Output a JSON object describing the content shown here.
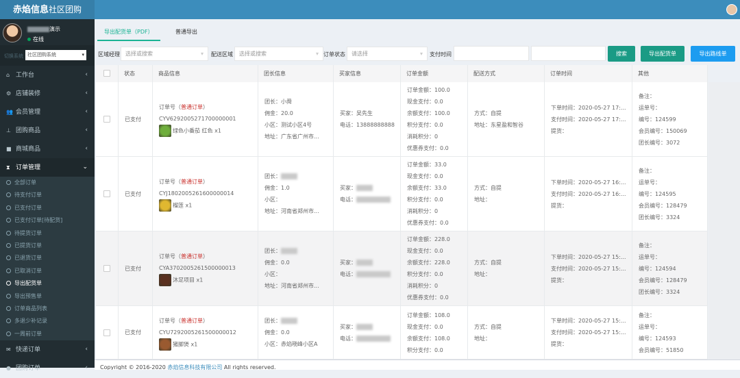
{
  "header": {
    "brand": "赤焰信息",
    "brand_sub": "社区团购"
  },
  "user": {
    "name_suffix": "演示",
    "status": "在线"
  },
  "switch": {
    "label": "切换系统",
    "value": "社区团购系统"
  },
  "menu": [
    {
      "label": "工作台",
      "icon": "home-icon",
      "glyph": "⌂"
    },
    {
      "label": "店铺装修",
      "icon": "cogs-icon",
      "glyph": "⚙"
    },
    {
      "label": "会员管理",
      "icon": "users-icon",
      "glyph": "👥"
    },
    {
      "label": "团购商品",
      "icon": "sitemap-icon",
      "glyph": "⊥"
    },
    {
      "label": "商城商品",
      "icon": "briefcase-icon",
      "glyph": "■"
    },
    {
      "label": "订单管理",
      "icon": "hourglass-icon",
      "glyph": "⧗",
      "active": true
    }
  ],
  "submenu": [
    "全部订单",
    "待支付订单",
    "已支付订单",
    "已支付订单[待配货]",
    "待提货订单",
    "已提货订单",
    "已退货订单",
    "已取消订单",
    "导出配货单",
    "导出预售单",
    "订单商品列表",
    "多退少补记录",
    "一周前订单"
  ],
  "submenu_active": "导出配货单",
  "menu_after": [
    {
      "label": "快递订单",
      "icon": "envelope-icon",
      "glyph": "✉"
    },
    {
      "label": "团购订单",
      "icon": "globe-icon",
      "glyph": "●"
    }
  ],
  "tabs": {
    "active": "导出配货单（PDF）",
    "other": "普通导出"
  },
  "filters": {
    "area_manager_label": "区域经理",
    "area_manager_placeholder": "选择或搜索",
    "delivery_area_label": "配送区域",
    "delivery_area_placeholder": "选择或搜索",
    "order_status_label": "订单状态",
    "order_status_placeholder": "请选择",
    "pay_time_label": "支付时间",
    "search": "搜索",
    "export_delivery": "导出配货单",
    "export_route": "导出路线单"
  },
  "colors": {
    "accent": "#1ab394",
    "blue": "#1c9cf0",
    "header": "#3c8dbc",
    "sidebar": "#222d32",
    "order_type": "#c9302c"
  },
  "table": {
    "headers": [
      "状态",
      "商品信息",
      "团长信息",
      "买家信息",
      "订单金额",
      "配送方式",
      "订单时间",
      "其他"
    ],
    "rows": [
      {
        "status": "已支付",
        "order_label": "订单号（",
        "order_type": "普通订单",
        "order_label_end": "）",
        "order_no": "CYV6292005271700000001",
        "product": "绿色小番茄 红色 x1",
        "thumb": "#6fae3c",
        "leader": [
          "团长：小舜",
          "佣金：20.0",
          "小区：测试小区4号",
          "地址：广东省广州市..."
        ],
        "buyer": [
          "买家：吴先生",
          "电话：13888888888"
        ],
        "amount": [
          "订单金额：100.0",
          "现金支付：0.0",
          "余额支付：100.0",
          "积分支付：0.0",
          "消耗积分：0",
          "优惠券支付：0.0"
        ],
        "delivery": [
          "方式：自提",
          "地址：东星盈和智谷"
        ],
        "time": [
          "下单时间：2020-05-27 17:...",
          "支付时间：2020-05-27 17:...",
          "提货："
        ],
        "other": [
          "备注：",
          "运单号：",
          "编号：124599",
          "会员编号：150069",
          "团长编号：3072"
        ]
      },
      {
        "status": "已支付",
        "order_label": "订单号（",
        "order_type": "普通订单",
        "order_label_end": "）",
        "order_no": "CYJ1802005261600000014",
        "product": "榴莲 x1",
        "thumb": "#e0b830",
        "leader": [
          "团长：",
          "佣金：1.0",
          "小区：",
          "地址：河南省郑州市..."
        ],
        "buyer": [
          "买家：",
          "电话："
        ],
        "amount": [
          "订单金额：33.0",
          "现金支付：0.0",
          "余额支付：33.0",
          "积分支付：0.0",
          "消耗积分：0",
          "优惠券支付：0.0"
        ],
        "delivery": [
          "方式：自提",
          "地址："
        ],
        "time": [
          "下单时间：2020-05-27 16:...",
          "支付时间：2020-05-27 16:...",
          "提货："
        ],
        "other": [
          "备注：",
          "运单号：",
          "编号：124595",
          "会员编号：128479",
          "团长编号：3324"
        ]
      },
      {
        "status": "已支付",
        "order_label": "订单号（",
        "order_type": "普通订单",
        "order_label_end": "）",
        "order_no": "CYA3702005261500000013",
        "product": "沐足项目 x1",
        "thumb": "#5a3020",
        "leader": [
          "团长：",
          "佣金：0.0",
          "小区：",
          "地址：河南省郑州市..."
        ],
        "buyer": [
          "买家：",
          "电话："
        ],
        "amount": [
          "订单金额：228.0",
          "现金支付：0.0",
          "余额支付：228.0",
          "积分支付：0.0",
          "消耗积分：0",
          "优惠券支付：0.0"
        ],
        "delivery": [
          "方式：自提",
          "地址："
        ],
        "time": [
          "下单时间：2020-05-27 15:...",
          "支付时间：2020-05-27 15:...",
          "提货："
        ],
        "other": [
          "备注：",
          "运单号：",
          "编号：124594",
          "会员编号：128479",
          "团长编号：3324"
        ]
      },
      {
        "status": "已支付",
        "order_label": "订单号（",
        "order_type": "普通订单",
        "order_label_end": "）",
        "order_no": "CYU7292005261500000012",
        "product": "猪脚煲 x1",
        "thumb": "#9a5a30",
        "leader": [
          "团长：",
          "佣金：0.0",
          "小区：赤焰晓峰小区A"
        ],
        "buyer": [
          "买家：",
          "电话："
        ],
        "amount": [
          "订单金额：108.0",
          "现金支付：0.0",
          "余额支付：108.0",
          "积分支付：0.0"
        ],
        "delivery": [
          "方式：自提",
          "地址："
        ],
        "time": [
          "下单时间：2020-05-27 15:...",
          "支付时间：2020-05-27 15:...",
          "提货："
        ],
        "other": [
          "备注：",
          "运单号：",
          "编号：124593",
          "会员编号：51850"
        ]
      }
    ]
  },
  "footer": {
    "text": "Copyright © 2016-2020 ",
    "company": "赤焰信息科技有限公司",
    "rights": " All rights reserved."
  }
}
